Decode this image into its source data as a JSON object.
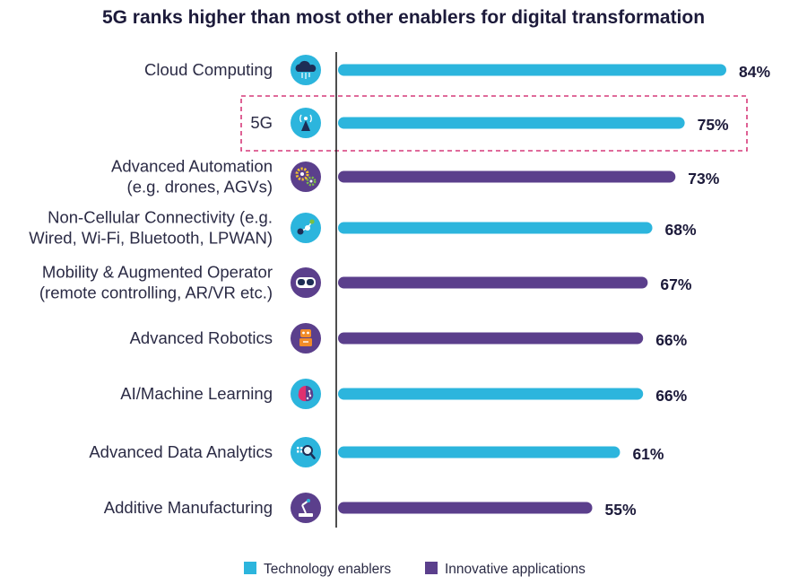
{
  "colors": {
    "technology": "#2cb5dd",
    "innovative": "#5b3f8c",
    "highlight": "#d63a7a",
    "axis": "#222222",
    "text": "#2b2b45"
  },
  "chart_data": {
    "type": "bar",
    "orientation": "horizontal",
    "title": "5G ranks higher than most other enablers for digital transformation",
    "xlim": [
      0,
      100
    ],
    "value_suffix": "%",
    "categories": [
      {
        "lines": [
          "Cloud Computing"
        ],
        "value": 84,
        "label": "84%",
        "group": "technology",
        "icon": "cloud-icon",
        "highlight": false
      },
      {
        "lines": [
          "5G"
        ],
        "value": 75,
        "label": "75%",
        "group": "technology",
        "icon": "antenna-icon",
        "highlight": true
      },
      {
        "lines": [
          "Advanced Automation",
          "(e.g. drones, AGVs)"
        ],
        "value": 73,
        "label": "73%",
        "group": "innovative",
        "icon": "gears-icon",
        "highlight": false
      },
      {
        "lines": [
          "Non-Cellular Connectivity (e.g.",
          "Wired, Wi-Fi, Bluetooth, LPWAN)"
        ],
        "value": 68,
        "label": "68%",
        "group": "technology",
        "icon": "network-icon",
        "highlight": false
      },
      {
        "lines": [
          "Mobility & Augmented Operator",
          "(remote controlling, AR/VR etc.)"
        ],
        "value": 67,
        "label": "67%",
        "group": "innovative",
        "icon": "vr-headset-icon",
        "highlight": false
      },
      {
        "lines": [
          "Advanced Robotics"
        ],
        "value": 66,
        "label": "66%",
        "group": "innovative",
        "icon": "robot-icon",
        "highlight": false
      },
      {
        "lines": [
          "AI/Machine Learning"
        ],
        "value": 66,
        "label": "66%",
        "group": "technology",
        "icon": "brain-icon",
        "highlight": false
      },
      {
        "lines": [
          "Advanced Data Analytics"
        ],
        "value": 61,
        "label": "61%",
        "group": "technology",
        "icon": "magnifier-data-icon",
        "highlight": false
      },
      {
        "lines": [
          "Additive Manufacturing"
        ],
        "value": 55,
        "label": "55%",
        "group": "innovative",
        "icon": "printer-arm-icon",
        "highlight": false
      }
    ],
    "legend": [
      {
        "key": "technology",
        "label": "Technology enablers"
      },
      {
        "key": "innovative",
        "label": "Innovative applications"
      }
    ],
    "legend_position": "bottom-center"
  }
}
